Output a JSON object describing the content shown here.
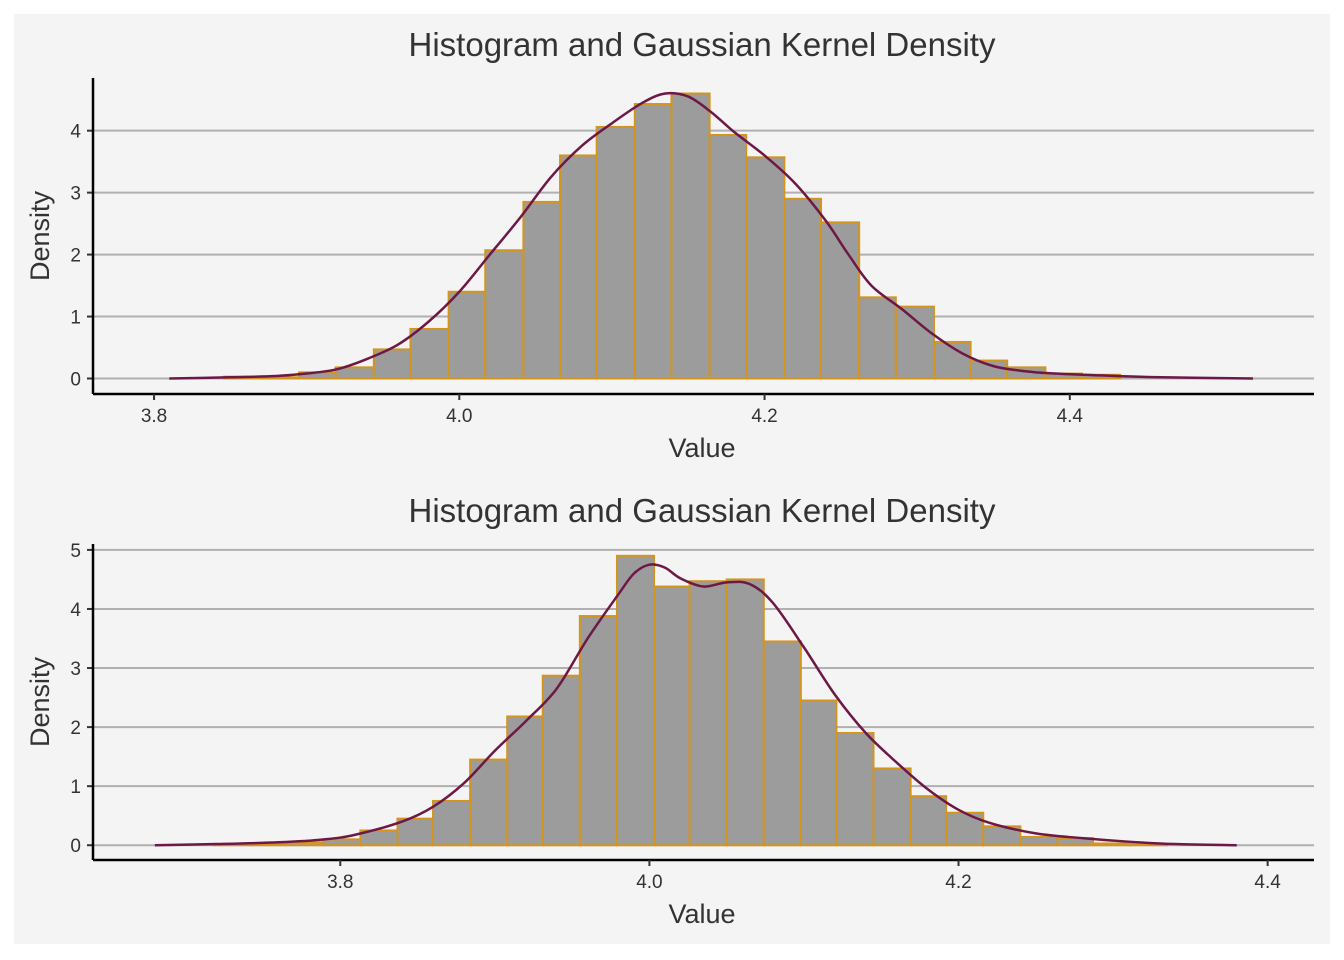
{
  "chart_data": [
    {
      "type": "bar",
      "title": "Histogram and Gaussian Kernel Density",
      "xlabel": "Value",
      "ylabel": "Density",
      "xlim": [
        3.76,
        4.56
      ],
      "ylim": [
        -0.25,
        4.85
      ],
      "xticks": [
        3.8,
        4.0,
        4.2,
        4.4
      ],
      "xtick_labels": [
        "3.8",
        "4.0",
        "4.2",
        "4.4"
      ],
      "yticks": [
        0,
        1,
        2,
        3,
        4
      ],
      "ytick_labels": [
        "0",
        "1",
        "2",
        "3",
        "4"
      ],
      "grid": "horizontal",
      "bar_fill": "#9c9c9c",
      "bar_edge": "#d4951f",
      "line_color": "#6e1845",
      "bins": [
        {
          "x0": 3.797,
          "x1": 3.821,
          "value": 0.0
        },
        {
          "x0": 3.821,
          "x1": 3.846,
          "value": 0.0
        },
        {
          "x0": 3.846,
          "x1": 3.87,
          "value": 0.03
        },
        {
          "x0": 3.87,
          "x1": 3.895,
          "value": 0.02
        },
        {
          "x0": 3.895,
          "x1": 3.919,
          "value": 0.1
        },
        {
          "x0": 3.919,
          "x1": 3.944,
          "value": 0.18
        },
        {
          "x0": 3.944,
          "x1": 3.968,
          "value": 0.47
        },
        {
          "x0": 3.968,
          "x1": 3.993,
          "value": 0.8
        },
        {
          "x0": 3.993,
          "x1": 4.017,
          "value": 1.4
        },
        {
          "x0": 4.017,
          "x1": 4.042,
          "value": 2.07
        },
        {
          "x0": 4.042,
          "x1": 4.066,
          "value": 2.85
        },
        {
          "x0": 4.066,
          "x1": 4.09,
          "value": 3.6
        },
        {
          "x0": 4.09,
          "x1": 4.115,
          "value": 4.06
        },
        {
          "x0": 4.115,
          "x1": 4.139,
          "value": 4.43
        },
        {
          "x0": 4.139,
          "x1": 4.164,
          "value": 4.6
        },
        {
          "x0": 4.164,
          "x1": 4.188,
          "value": 3.93
        },
        {
          "x0": 4.188,
          "x1": 4.213,
          "value": 3.57
        },
        {
          "x0": 4.213,
          "x1": 4.237,
          "value": 2.9
        },
        {
          "x0": 4.237,
          "x1": 4.262,
          "value": 2.52
        },
        {
          "x0": 4.262,
          "x1": 4.286,
          "value": 1.31
        },
        {
          "x0": 4.286,
          "x1": 4.311,
          "value": 1.16
        },
        {
          "x0": 4.311,
          "x1": 4.335,
          "value": 0.59
        },
        {
          "x0": 4.335,
          "x1": 4.359,
          "value": 0.29
        },
        {
          "x0": 4.359,
          "x1": 4.384,
          "value": 0.18
        },
        {
          "x0": 4.384,
          "x1": 4.408,
          "value": 0.08
        },
        {
          "x0": 4.408,
          "x1": 4.433,
          "value": 0.06
        },
        {
          "x0": 4.433,
          "x1": 4.457,
          "value": 0.0
        },
        {
          "x0": 4.457,
          "x1": 4.482,
          "value": 0.0
        },
        {
          "x0": 4.482,
          "x1": 4.506,
          "value": 0.0
        },
        {
          "x0": 4.506,
          "x1": 4.531,
          "value": 0.0
        }
      ],
      "kde": {
        "x": [
          3.81,
          3.85,
          3.88,
          3.9,
          3.92,
          3.94,
          3.96,
          3.98,
          4.0,
          4.02,
          4.04,
          4.06,
          4.08,
          4.1,
          4.12,
          4.135,
          4.15,
          4.165,
          4.18,
          4.2,
          4.22,
          4.24,
          4.255,
          4.27,
          4.29,
          4.31,
          4.33,
          4.35,
          4.37,
          4.39,
          4.42,
          4.46,
          4.52
        ],
        "y": [
          0.0,
          0.02,
          0.04,
          0.08,
          0.15,
          0.32,
          0.55,
          0.92,
          1.4,
          2.0,
          2.6,
          3.25,
          3.75,
          4.12,
          4.45,
          4.6,
          4.55,
          4.3,
          3.98,
          3.6,
          3.15,
          2.55,
          2.0,
          1.5,
          1.12,
          0.72,
          0.4,
          0.2,
          0.12,
          0.08,
          0.05,
          0.02,
          0.0
        ]
      }
    },
    {
      "type": "bar",
      "title": "Histogram and Gaussian Kernel Density",
      "xlabel": "Value",
      "ylabel": "Density",
      "xlim": [
        3.64,
        4.43
      ],
      "ylim": [
        -0.25,
        5.1
      ],
      "xticks": [
        3.8,
        4.0,
        4.2,
        4.4
      ],
      "xtick_labels": [
        "3.8",
        "4.0",
        "4.2",
        "4.4"
      ],
      "yticks": [
        0,
        1,
        2,
        3,
        4,
        5
      ],
      "ytick_labels": [
        "0",
        "1",
        "2",
        "3",
        "4",
        "5"
      ],
      "grid": "horizontal",
      "bar_fill": "#9c9c9c",
      "bar_edge": "#d4951f",
      "line_color": "#6e1845",
      "bins": [
        {
          "x0": 3.671,
          "x1": 3.694,
          "value": 0.0
        },
        {
          "x0": 3.694,
          "x1": 3.718,
          "value": 0.0
        },
        {
          "x0": 3.718,
          "x1": 3.742,
          "value": 0.02
        },
        {
          "x0": 3.742,
          "x1": 3.765,
          "value": 0.03
        },
        {
          "x0": 3.765,
          "x1": 3.789,
          "value": 0.05
        },
        {
          "x0": 3.789,
          "x1": 3.813,
          "value": 0.1
        },
        {
          "x0": 3.813,
          "x1": 3.837,
          "value": 0.25
        },
        {
          "x0": 3.837,
          "x1": 3.86,
          "value": 0.45
        },
        {
          "x0": 3.86,
          "x1": 3.884,
          "value": 0.75
        },
        {
          "x0": 3.884,
          "x1": 3.908,
          "value": 1.45
        },
        {
          "x0": 3.908,
          "x1": 3.931,
          "value": 2.18
        },
        {
          "x0": 3.931,
          "x1": 3.955,
          "value": 2.87
        },
        {
          "x0": 3.955,
          "x1": 3.979,
          "value": 3.88
        },
        {
          "x0": 3.979,
          "x1": 4.003,
          "value": 4.9
        },
        {
          "x0": 4.003,
          "x1": 4.026,
          "value": 4.38
        },
        {
          "x0": 4.026,
          "x1": 4.05,
          "value": 4.47
        },
        {
          "x0": 4.05,
          "x1": 4.074,
          "value": 4.5
        },
        {
          "x0": 4.074,
          "x1": 4.098,
          "value": 3.45
        },
        {
          "x0": 4.098,
          "x1": 4.121,
          "value": 2.45
        },
        {
          "x0": 4.121,
          "x1": 4.145,
          "value": 1.9
        },
        {
          "x0": 4.145,
          "x1": 4.169,
          "value": 1.3
        },
        {
          "x0": 4.169,
          "x1": 4.192,
          "value": 0.83
        },
        {
          "x0": 4.192,
          "x1": 4.216,
          "value": 0.55
        },
        {
          "x0": 4.216,
          "x1": 4.24,
          "value": 0.32
        },
        {
          "x0": 4.24,
          "x1": 4.264,
          "value": 0.14
        },
        {
          "x0": 4.264,
          "x1": 4.287,
          "value": 0.12
        },
        {
          "x0": 4.287,
          "x1": 4.311,
          "value": 0.03
        },
        {
          "x0": 4.311,
          "x1": 4.335,
          "value": 0.02
        },
        {
          "x0": 4.335,
          "x1": 4.358,
          "value": 0.0
        },
        {
          "x0": 4.358,
          "x1": 4.382,
          "value": 0.0
        }
      ],
      "kde": {
        "x": [
          3.68,
          3.72,
          3.76,
          3.79,
          3.81,
          3.84,
          3.86,
          3.88,
          3.9,
          3.92,
          3.94,
          3.96,
          3.98,
          3.99,
          4.0,
          4.01,
          4.02,
          4.035,
          4.05,
          4.065,
          4.08,
          4.1,
          4.12,
          4.14,
          4.16,
          4.18,
          4.2,
          4.22,
          4.25,
          4.28,
          4.31,
          4.34,
          4.38
        ],
        "y": [
          0.0,
          0.02,
          0.05,
          0.1,
          0.18,
          0.4,
          0.65,
          1.05,
          1.6,
          2.1,
          2.65,
          3.5,
          4.25,
          4.6,
          4.75,
          4.7,
          4.52,
          4.38,
          4.45,
          4.42,
          4.1,
          3.35,
          2.55,
          1.9,
          1.4,
          0.95,
          0.6,
          0.38,
          0.2,
          0.12,
          0.06,
          0.02,
          0.0
        ]
      }
    }
  ]
}
